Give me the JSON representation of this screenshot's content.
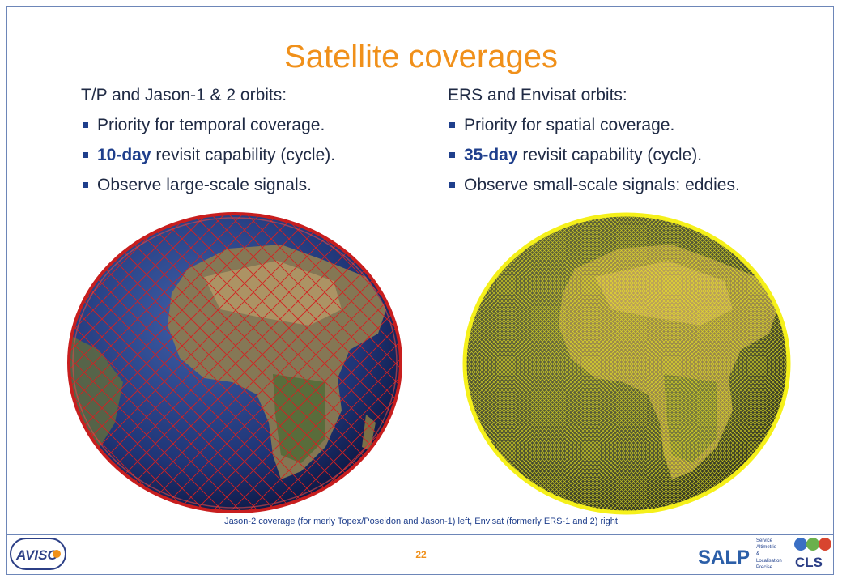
{
  "slide": {
    "title": "Satellite coverages",
    "left_column": {
      "heading": "T/P and Jason-1 & 2 orbits:",
      "bullets": [
        {
          "bold": "",
          "text": "Priority for temporal coverage."
        },
        {
          "bold": "10-day",
          "text": " revisit capability (cycle)."
        },
        {
          "bold": "",
          "text": "Observe large-scale signals."
        }
      ]
    },
    "right_column": {
      "heading": "ERS and Envisat orbits:",
      "bullets": [
        {
          "bold": "",
          "text": "Priority for spatial coverage."
        },
        {
          "bold": "35-day",
          "text": " revisit capability (cycle)."
        },
        {
          "bold": "",
          "text": "Observe small-scale signals: eddies."
        }
      ]
    },
    "caption": "Jason-2 coverage (for merly Topex/Poseidon and Jason-1) left, Envisat (formerly ERS-1 and 2) right",
    "page_number": "22"
  },
  "images": {
    "left_globe": {
      "icon": "globe-jason-coverage",
      "track_color": "#d42020"
    },
    "right_globe": {
      "icon": "globe-envisat-coverage",
      "track_color": "#f2ee1e"
    }
  },
  "footer": {
    "aviso_logo": "AVISO",
    "salp_logo": "SALP",
    "salp_acronym": [
      "Service",
      "Altimetrie",
      "&",
      "Localisation",
      "Precise"
    ],
    "cls_logo": "CLS"
  },
  "colors": {
    "accent": "#f0901a",
    "text": "#1f2a44",
    "bullet": "#1f3f8c",
    "border": "#6d86b8"
  }
}
